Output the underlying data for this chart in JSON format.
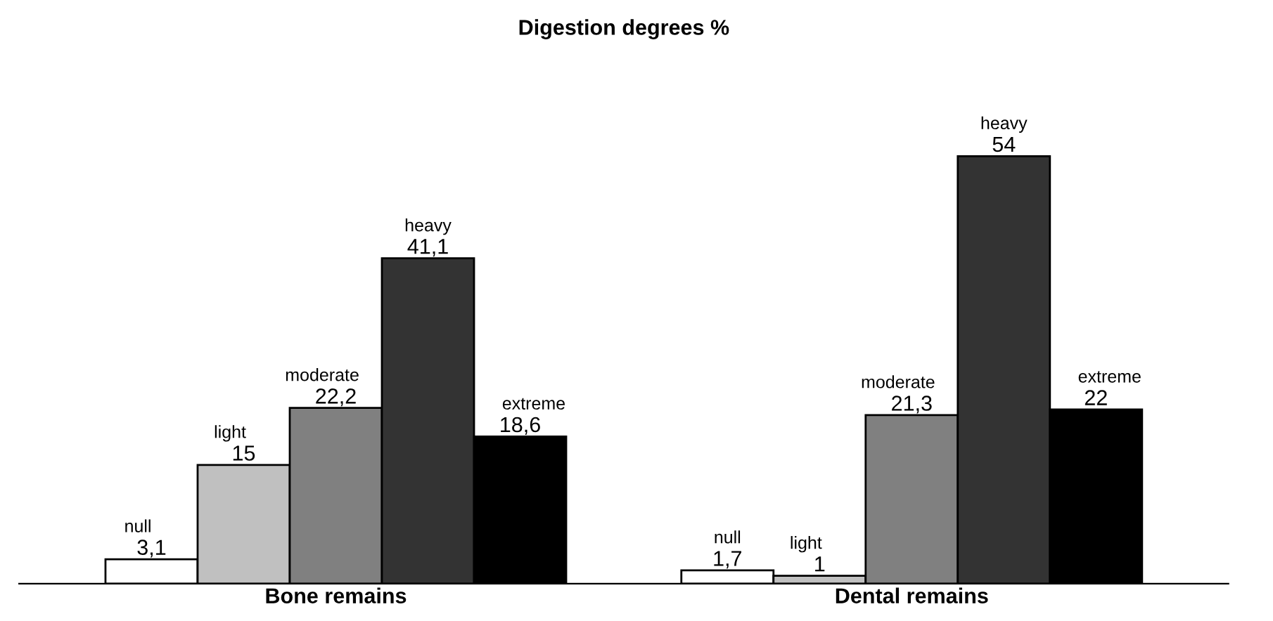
{
  "chart_data": {
    "type": "bar",
    "title": "Digestion degrees %",
    "categories": [
      "Bone remains",
      "Dental remains"
    ],
    "series": [
      {
        "name": "null",
        "color": "#ffffff",
        "values": [
          3.1,
          1.7
        ],
        "value_labels": [
          "3,1",
          "1,7"
        ]
      },
      {
        "name": "light",
        "color": "#c0c0c0",
        "values": [
          15,
          1
        ],
        "value_labels": [
          "15",
          "1"
        ]
      },
      {
        "name": "moderate",
        "color": "#808080",
        "values": [
          22.2,
          21.3
        ],
        "value_labels": [
          "22,2",
          "21,3"
        ]
      },
      {
        "name": "heavy",
        "color": "#333333",
        "values": [
          41.1,
          54
        ],
        "value_labels": [
          "41,1",
          "54"
        ]
      },
      {
        "name": "extreme",
        "color": "#000000",
        "values": [
          18.6,
          22
        ],
        "value_labels": [
          "18,6",
          "22"
        ]
      }
    ],
    "tick_labels": "x",
    "grid": false,
    "legend": false
  }
}
